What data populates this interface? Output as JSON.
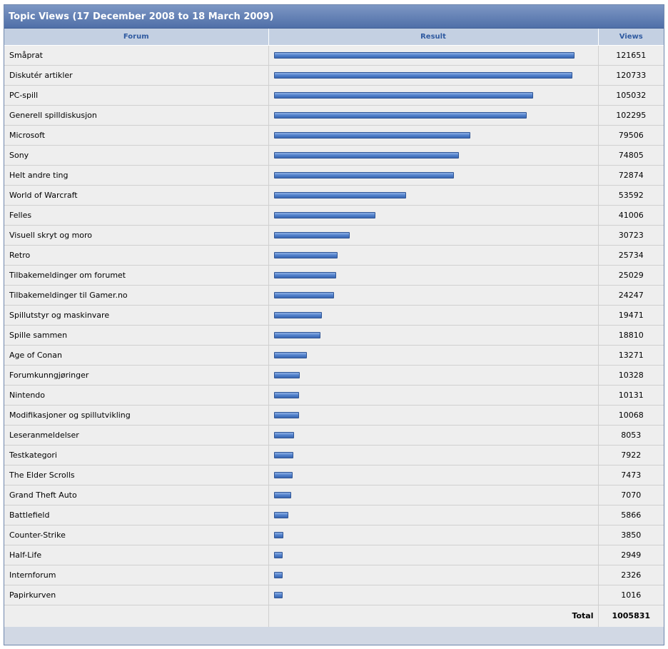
{
  "title": "Topic Views (17 December 2008 to 18 March 2009)",
  "columns": {
    "forum": "Forum",
    "result": "Result",
    "views": "Views"
  },
  "max_views": 121651,
  "rows": [
    {
      "forum": "Småprat",
      "views": "121651"
    },
    {
      "forum": "Diskutér artikler",
      "views": "120733"
    },
    {
      "forum": "PC-spill",
      "views": "105032"
    },
    {
      "forum": "Generell spilldiskusjon",
      "views": "102295"
    },
    {
      "forum": "Microsoft",
      "views": "79506"
    },
    {
      "forum": "Sony",
      "views": "74805"
    },
    {
      "forum": "Helt andre ting",
      "views": "72874"
    },
    {
      "forum": "World of Warcraft",
      "views": "53592"
    },
    {
      "forum": "Felles",
      "views": "41006"
    },
    {
      "forum": "Visuell skryt og moro",
      "views": "30723"
    },
    {
      "forum": "Retro",
      "views": "25734"
    },
    {
      "forum": "Tilbakemeldinger om forumet",
      "views": "25029"
    },
    {
      "forum": "Tilbakemeldinger til Gamer.no",
      "views": "24247"
    },
    {
      "forum": "Spillutstyr og maskinvare",
      "views": "19471"
    },
    {
      "forum": "Spille sammen",
      "views": "18810"
    },
    {
      "forum": "Age of Conan",
      "views": "13271"
    },
    {
      "forum": "Forumkunngjøringer",
      "views": "10328"
    },
    {
      "forum": "Nintendo",
      "views": "10131"
    },
    {
      "forum": "Modifikasjoner og spillutvikling",
      "views": "10068"
    },
    {
      "forum": "Leseranmeldelser",
      "views": "8053"
    },
    {
      "forum": "Testkategori",
      "views": "7922"
    },
    {
      "forum": "The Elder Scrolls",
      "views": "7473"
    },
    {
      "forum": "Grand Theft Auto",
      "views": "7070"
    },
    {
      "forum": "Battlefield",
      "views": "5866"
    },
    {
      "forum": "Counter-Strike",
      "views": "3850"
    },
    {
      "forum": "Half-Life",
      "views": "2949"
    },
    {
      "forum": "Internforum",
      "views": "2326"
    },
    {
      "forum": "Papirkurven",
      "views": "1016"
    }
  ],
  "total": {
    "label": "Total",
    "value": "1005831"
  },
  "colors": {
    "header_bg": "#4f6fa8",
    "bar": "#4d7dc9",
    "column_header_text": "#2f5aa0"
  }
}
